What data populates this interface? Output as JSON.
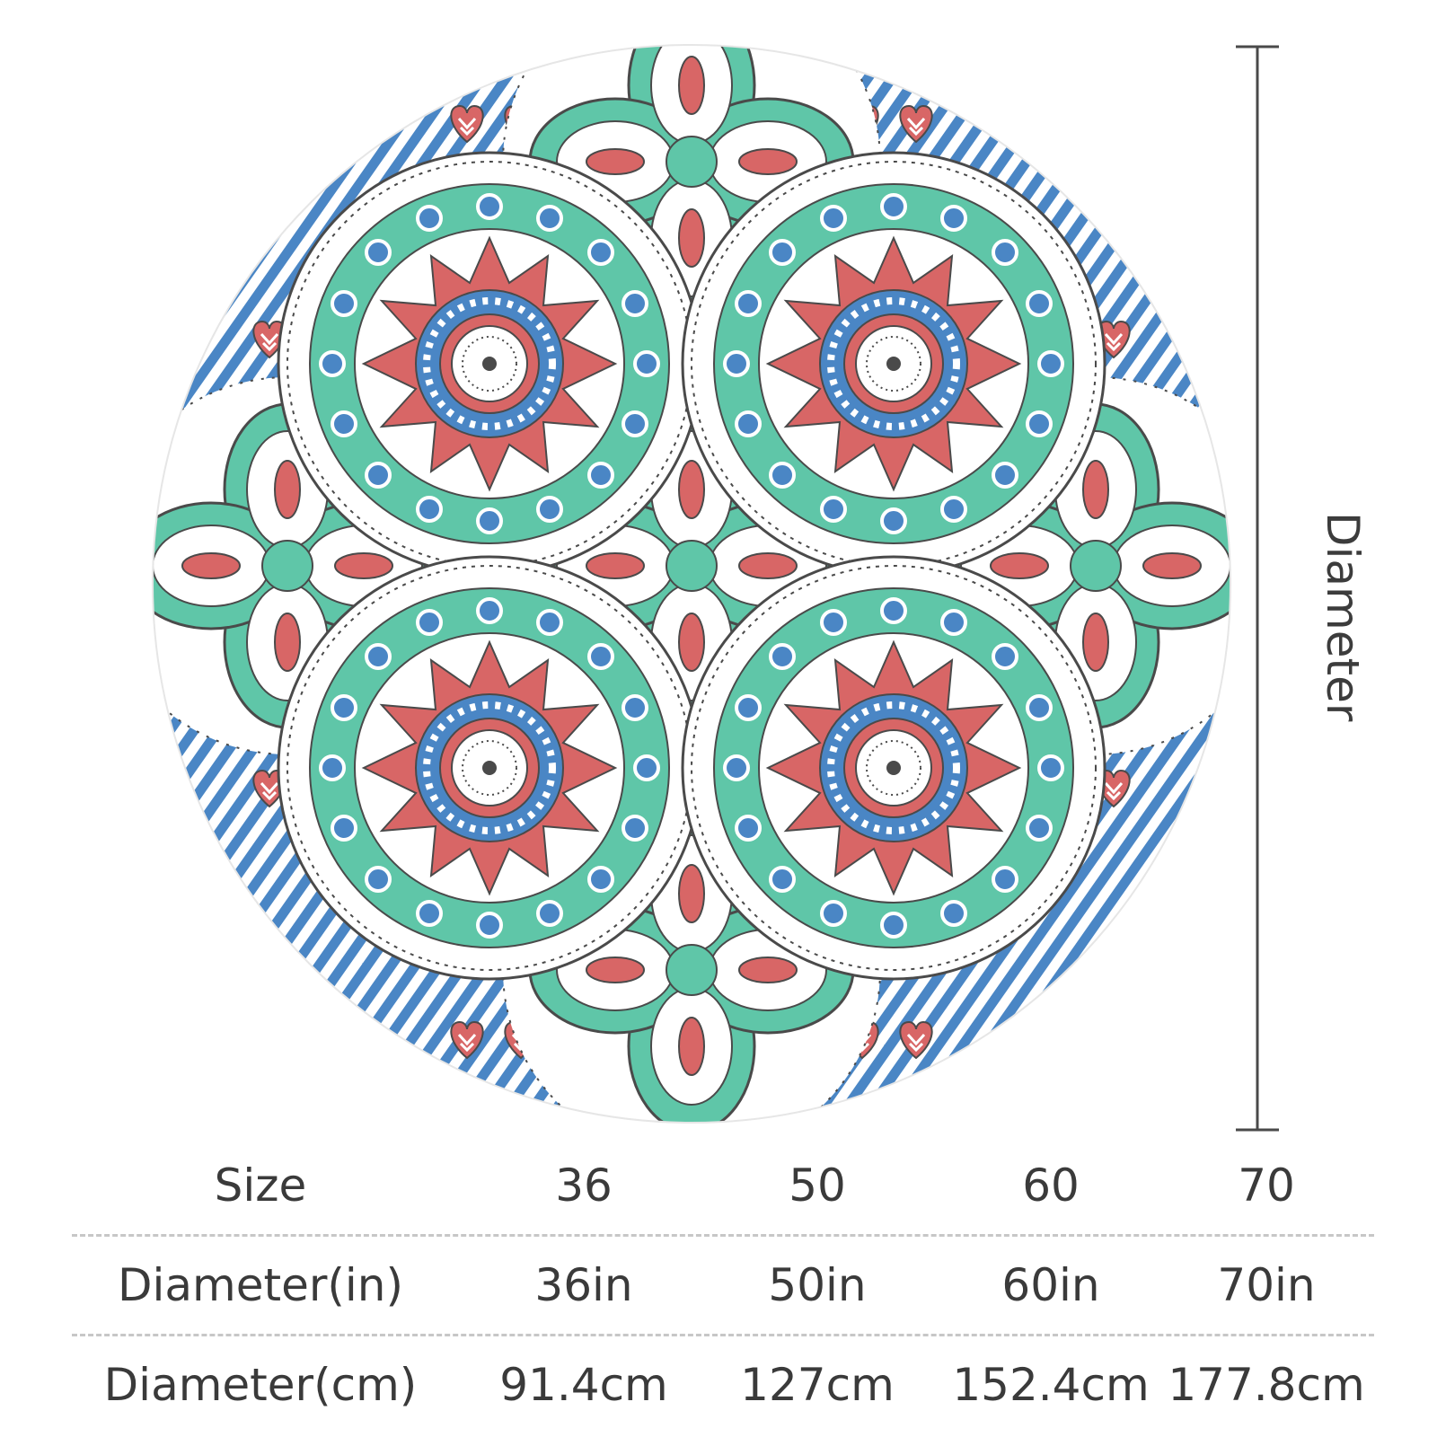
{
  "diagram": {
    "dimension_label": "Diameter"
  },
  "colors": {
    "teal": "#5fc6a8",
    "blue": "#4a86c5",
    "coral": "#d86666",
    "white": "#ffffff",
    "outline": "#4a4a4a"
  },
  "table": {
    "rows": [
      {
        "header": "Size",
        "values": [
          "36",
          "50",
          "60",
          "70"
        ]
      },
      {
        "header": "Diameter(in)",
        "values": [
          "36in",
          "50in",
          "60in",
          "70in"
        ]
      },
      {
        "header": "Diameter(cm)",
        "values": [
          "91.4cm",
          "127cm",
          "152.4cm",
          "177.8cm"
        ]
      }
    ]
  }
}
